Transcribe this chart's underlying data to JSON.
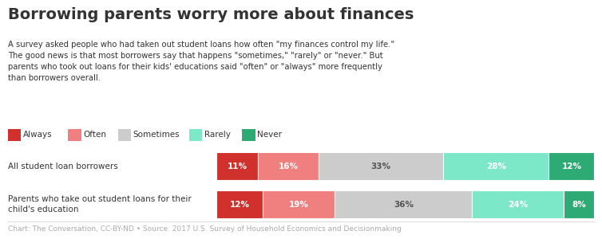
{
  "title": "Borrowing parents worry more about finances",
  "subtitle": "A survey asked people who had taken out student loans how often \"my finances control my life.\"\nThe good news is that most borrowers say that happens \"sometimes,\" \"rarely\" or \"never.\" But\nparents who took out loans for their kids' educations said \"often\" or \"always\" more frequently\nthan borrowers overall.",
  "footnote": "Chart: The Conversation, CC-BY-ND • Source: 2017 U.S. Survey of Household Economics and Decisionmaking",
  "categories": [
    "Always",
    "Often",
    "Sometimes",
    "Rarely",
    "Never"
  ],
  "colors": [
    "#d0312d",
    "#f08080",
    "#cccccc",
    "#7de8c8",
    "#2eab74"
  ],
  "rows": [
    {
      "label": "All student loan borrowers",
      "values": [
        11,
        16,
        33,
        28,
        12
      ]
    },
    {
      "label": "Parents who take out student loans for their\nchild's education",
      "values": [
        12,
        19,
        36,
        24,
        8
      ]
    }
  ],
  "background_color": "#ffffff",
  "text_color": "#333333",
  "footnote_color": "#aaaaaa",
  "separator_color": "#dddddd"
}
